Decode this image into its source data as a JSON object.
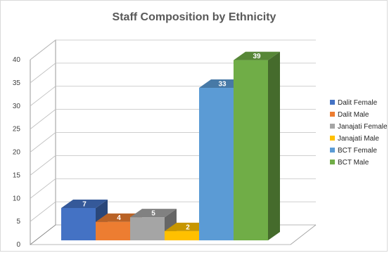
{
  "chart_data": {
    "type": "bar",
    "title": "Staff Composition by Ethnicity",
    "xlabel": "",
    "ylabel": "",
    "ylim": [
      0,
      40
    ],
    "yticks": [
      0,
      5,
      10,
      15,
      20,
      25,
      30,
      35,
      40
    ],
    "grid": true,
    "legend_position": "right",
    "style": "3d-clustered-column",
    "series": [
      {
        "name": "Dalit Female",
        "values": [
          7
        ],
        "color": "#4472c4"
      },
      {
        "name": "Dalit Male",
        "values": [
          4
        ],
        "color": "#ed7d31"
      },
      {
        "name": "Janajati Female",
        "values": [
          5
        ],
        "color": "#a5a5a5"
      },
      {
        "name": "Janajati Male",
        "values": [
          2
        ],
        "color": "#ffc000"
      },
      {
        "name": "BCT Female",
        "values": [
          33
        ],
        "color": "#5b9bd5"
      },
      {
        "name": "BCT Male",
        "values": [
          39
        ],
        "color": "#70ad47"
      }
    ]
  }
}
